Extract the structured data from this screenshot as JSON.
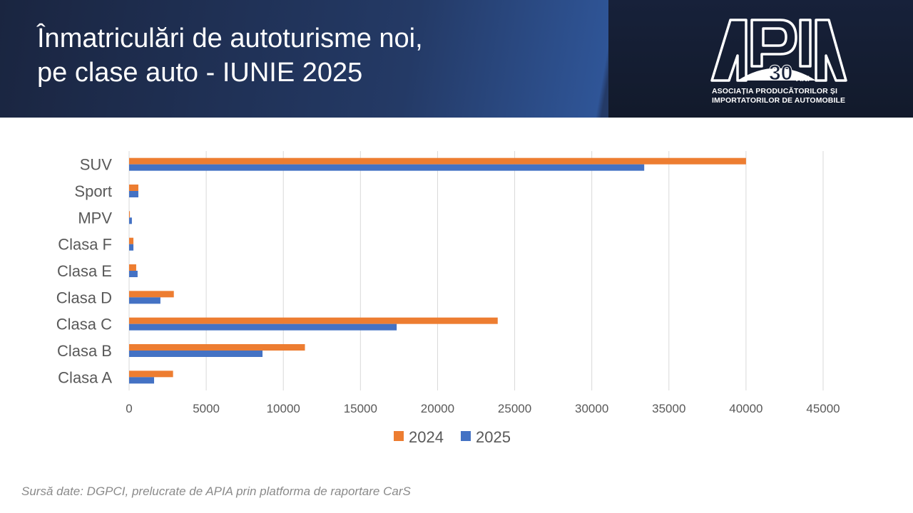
{
  "header": {
    "title_line1": "Înmatriculări de autoturisme noi,",
    "title_line2": "pe clase auto - IUNIE 2025",
    "logo": {
      "name": "APIA",
      "badge": "30",
      "badge_suffix": "ANI",
      "line1": "ASOCIAȚIA PRODUCĂTORILOR ȘI",
      "line2": "IMPORTATORILOR DE AUTOMOBILE"
    }
  },
  "source": "Sursă date: DGPCI, prelucrate de APIA prin platforma de raportare CarS",
  "chart_data": {
    "type": "bar",
    "orientation": "horizontal",
    "categories": [
      "SUV",
      "Sport",
      "MPV",
      "Clasa F",
      "Clasa E",
      "Clasa D",
      "Clasa C",
      "Clasa B",
      "Clasa A"
    ],
    "series": [
      {
        "name": "2024",
        "color": "#ED7D31",
        "values": [
          40000,
          600,
          50,
          280,
          460,
          2900,
          23900,
          11400,
          2850
        ]
      },
      {
        "name": "2025",
        "color": "#4472C4",
        "values": [
          33400,
          600,
          180,
          280,
          550,
          2030,
          17350,
          8650,
          1620
        ]
      }
    ],
    "xlim": [
      0,
      45000
    ],
    "xticks": [
      "0",
      "5000",
      "10000",
      "15000",
      "20000",
      "25000",
      "30000",
      "35000",
      "40000",
      "45000"
    ],
    "grid": true,
    "legend": "bottom"
  }
}
